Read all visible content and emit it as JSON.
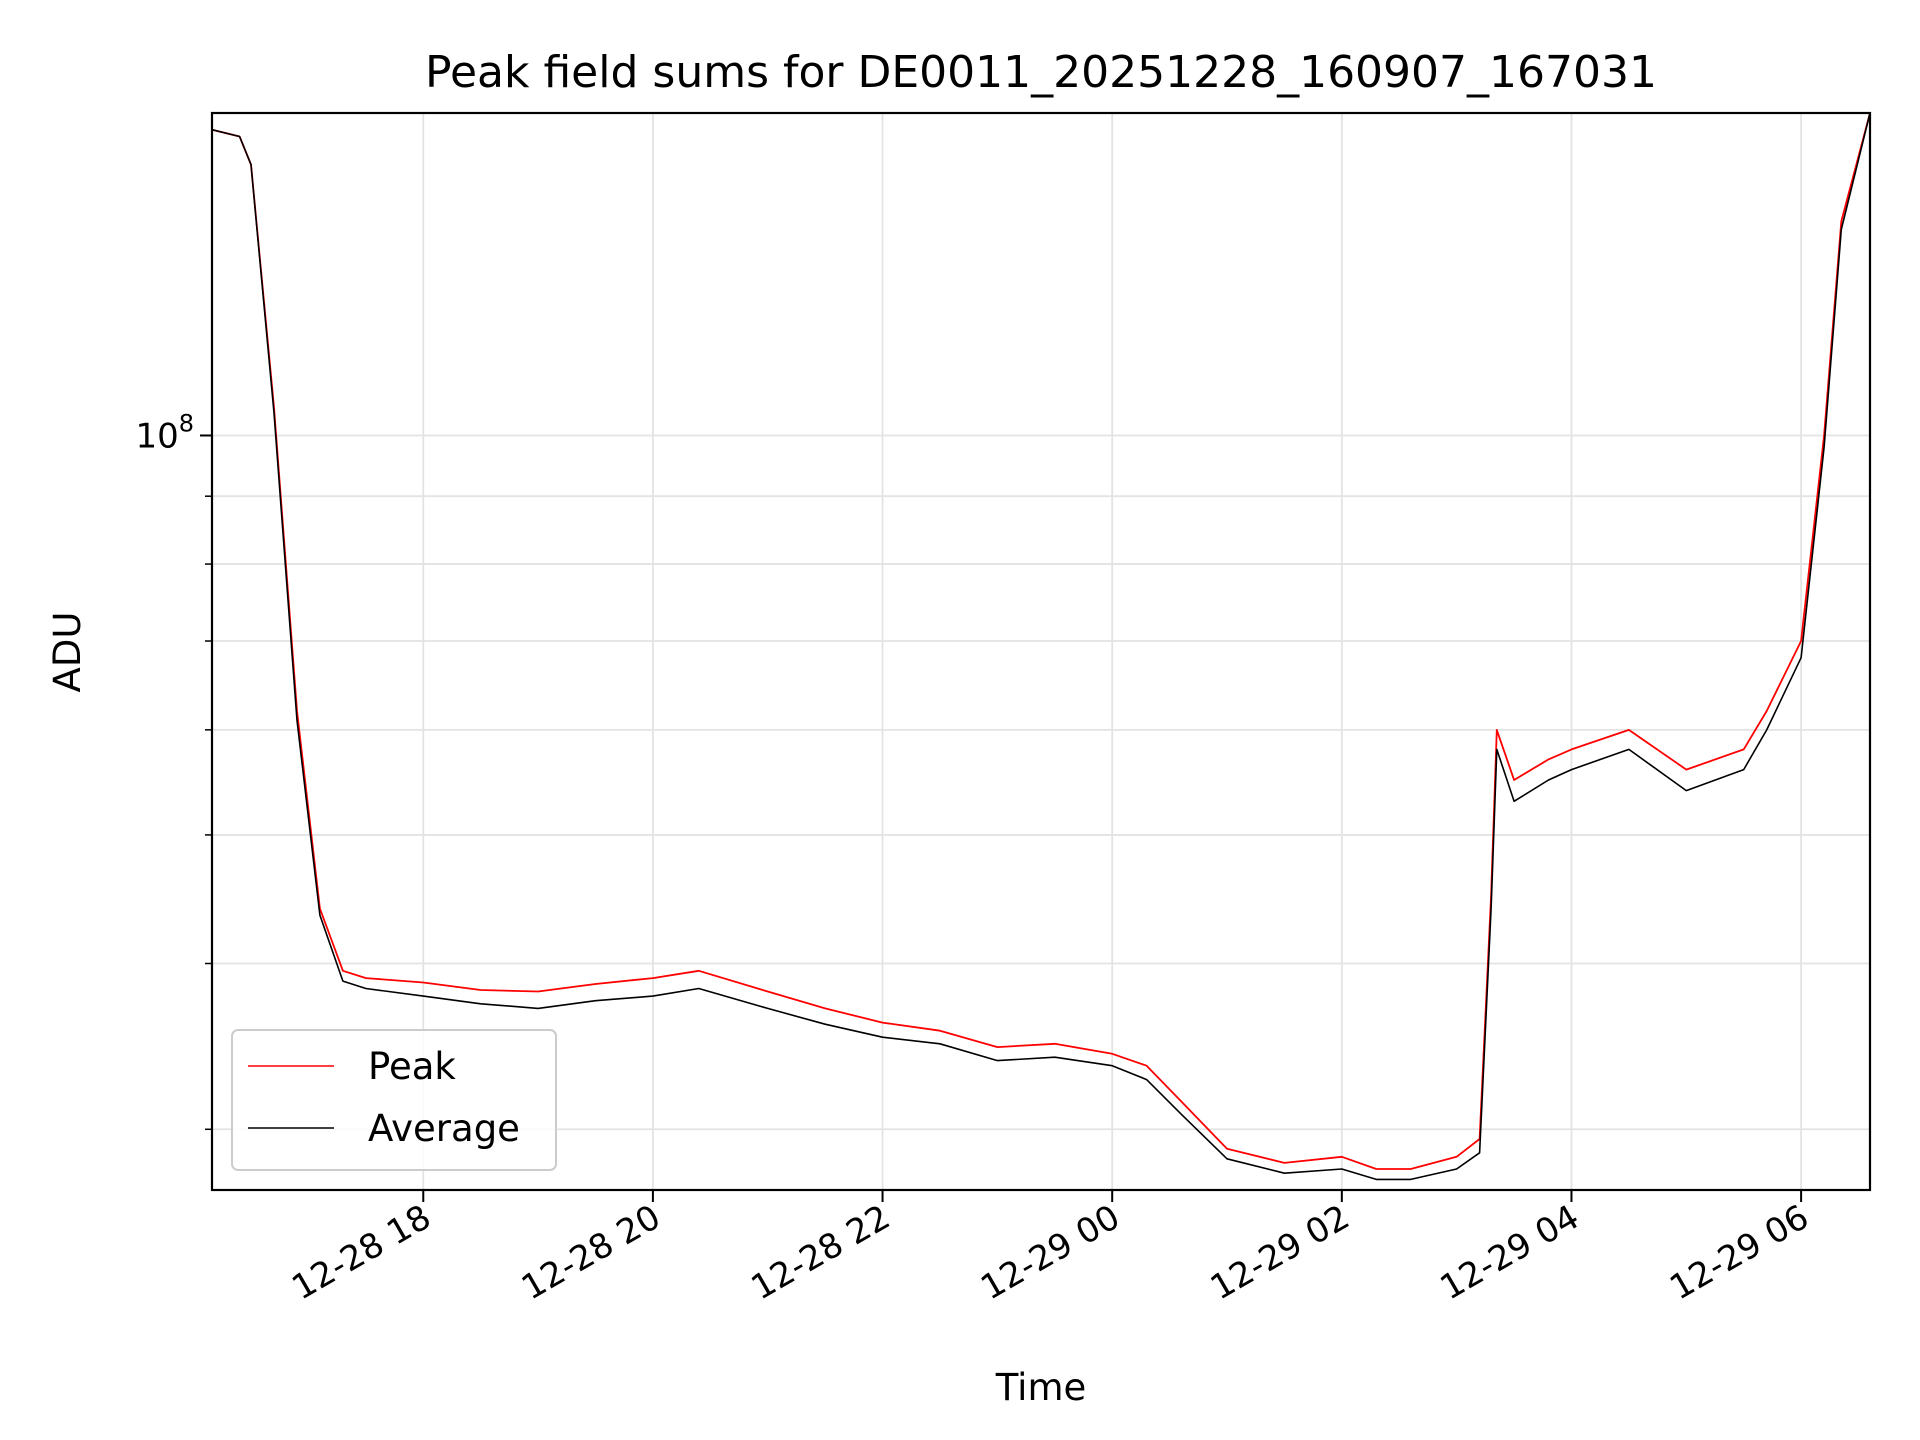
{
  "chart_data": {
    "type": "line",
    "title": "Peak field sums for DE0011_20251228_160907_167031",
    "xlabel": "Time",
    "ylabel": "ADU",
    "yscale": "log",
    "ylim": [
      27000000,
      175000000
    ],
    "xlim_hours": [
      16.16,
      30.6
    ],
    "grid": true,
    "legend_position": "lower-left",
    "x_ticks": [
      {
        "label": "12-28 18",
        "hour": 18
      },
      {
        "label": "12-28 20",
        "hour": 20
      },
      {
        "label": "12-28 22",
        "hour": 22
      },
      {
        "label": "12-29 00",
        "hour": 24
      },
      {
        "label": "12-29 02",
        "hour": 26
      },
      {
        "label": "12-29 04",
        "hour": 28
      },
      {
        "label": "12-29 06",
        "hour": 30
      }
    ],
    "y_major_tick": {
      "base": "10",
      "exponent": "8",
      "value": 100000000
    },
    "y_minor_ticks": [
      30000000,
      40000000,
      50000000,
      60000000,
      70000000,
      80000000,
      90000000
    ],
    "series": [
      {
        "name": "Peak",
        "color": "#ff0000",
        "x_hours": [
          16.16,
          16.4,
          16.5,
          16.7,
          16.9,
          17.1,
          17.3,
          17.5,
          18.0,
          18.5,
          19.0,
          19.5,
          20.0,
          20.4,
          21.0,
          21.5,
          22.0,
          22.5,
          23.0,
          23.5,
          24.0,
          24.3,
          24.6,
          25.0,
          25.5,
          26.0,
          26.3,
          26.6,
          27.0,
          27.2,
          27.3,
          27.35,
          27.5,
          27.8,
          28.0,
          28.5,
          29.0,
          29.5,
          29.7,
          30.0,
          30.2,
          30.35,
          30.6
        ],
        "values": [
          170000000,
          168000000,
          160000000,
          105000000,
          62000000,
          44000000,
          39500000,
          39000000,
          38700000,
          38200000,
          38100000,
          38600000,
          39000000,
          39500000,
          38100000,
          37000000,
          36100000,
          35600000,
          34600000,
          34800000,
          34200000,
          33500000,
          31500000,
          29000000,
          28300000,
          28600000,
          28000000,
          28000000,
          28600000,
          29500000,
          45000000,
          60000000,
          55000000,
          57000000,
          58000000,
          60000000,
          56000000,
          58000000,
          62000000,
          70000000,
          100000000,
          145000000,
          175000000
        ]
      },
      {
        "name": "Average",
        "color": "#000000",
        "x_hours": [
          16.16,
          16.4,
          16.5,
          16.7,
          16.9,
          17.1,
          17.3,
          17.5,
          18.0,
          18.5,
          19.0,
          19.5,
          20.0,
          20.4,
          21.0,
          21.5,
          22.0,
          22.5,
          23.0,
          23.5,
          24.0,
          24.3,
          24.6,
          25.0,
          25.5,
          26.0,
          26.3,
          26.6,
          27.0,
          27.2,
          27.3,
          27.35,
          27.5,
          27.8,
          28.0,
          28.5,
          29.0,
          29.5,
          29.7,
          30.0,
          30.2,
          30.35,
          30.6
        ],
        "values": [
          170000000,
          168000000,
          160000000,
          104000000,
          61000000,
          43500000,
          38800000,
          38300000,
          37800000,
          37300000,
          37000000,
          37500000,
          37800000,
          38300000,
          37000000,
          36000000,
          35200000,
          34800000,
          33800000,
          34000000,
          33500000,
          32700000,
          30800000,
          28500000,
          27800000,
          28000000,
          27500000,
          27500000,
          28000000,
          28800000,
          44000000,
          58000000,
          53000000,
          55000000,
          56000000,
          58000000,
          54000000,
          56000000,
          60000000,
          68000000,
          98000000,
          143000000,
          175000000
        ]
      }
    ]
  }
}
